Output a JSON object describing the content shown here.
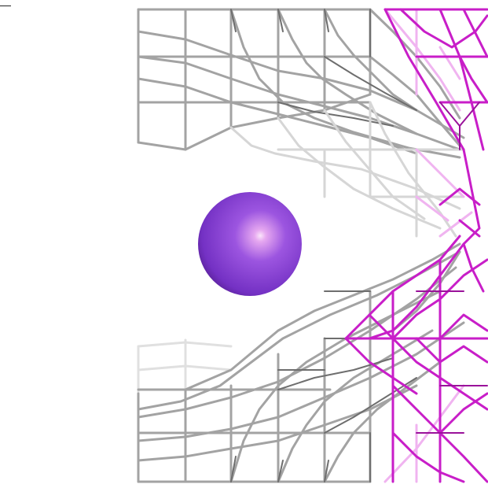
{
  "scene": {
    "background": "#ffffff",
    "ion": {
      "color": "#8f43d9",
      "highlight": "#f6d0f6",
      "shadow": "#4e1a86"
    },
    "lattice": {
      "gray_stroke": "#9b9b9b",
      "gray_light": "#d2d2d2",
      "gray_dark": "#6a6a6a",
      "magenta_stroke": "#c81ec8",
      "magenta_light": "#ec9aec"
    }
  }
}
